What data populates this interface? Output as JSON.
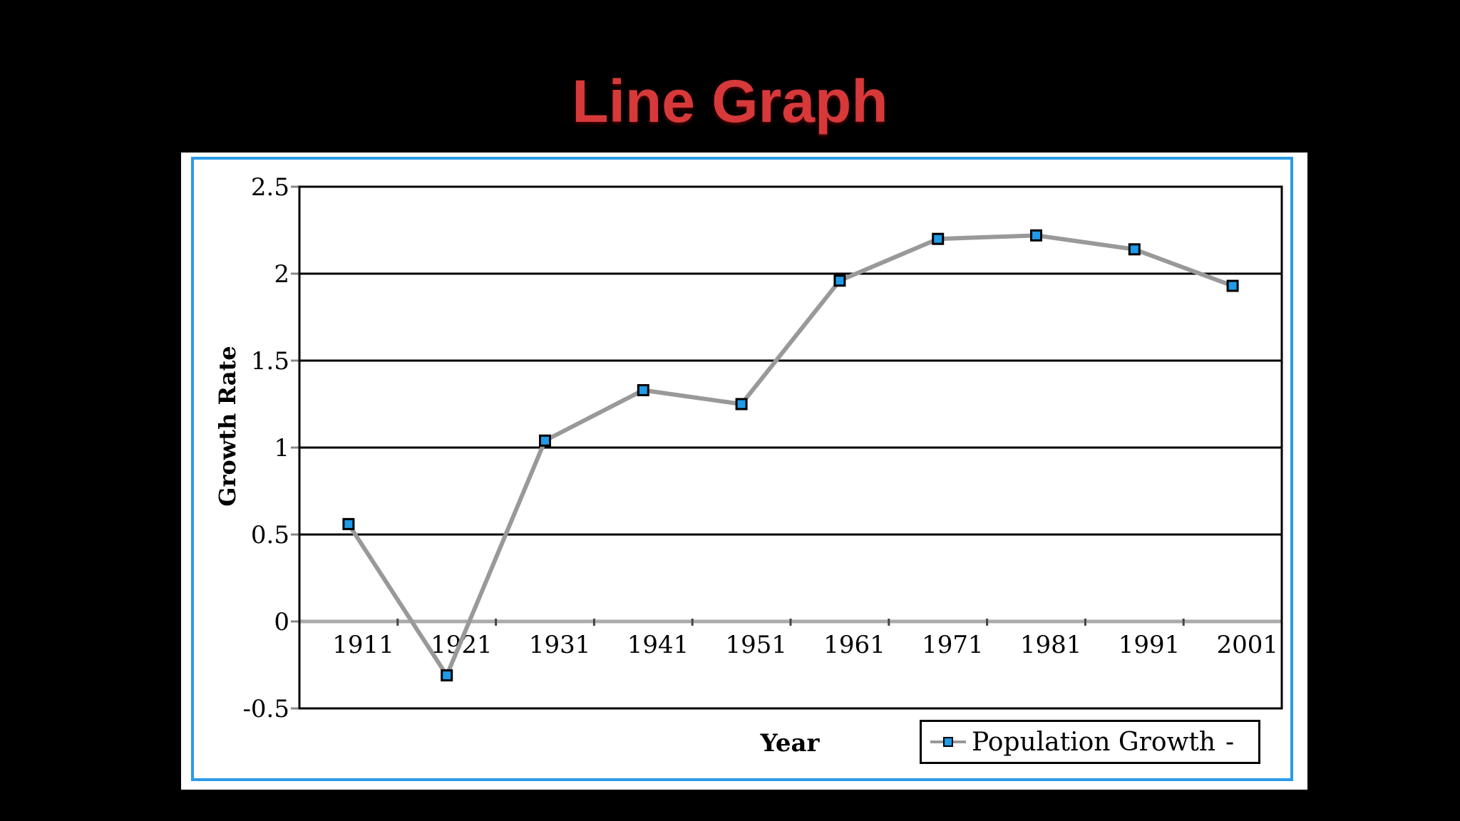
{
  "slide": {
    "title": "Line Graph"
  },
  "colors": {
    "background": "#000000",
    "title": "#d7393a",
    "frame_border": "#2a9be6",
    "series_line": "#999999",
    "marker_fill": "#1f9be8"
  },
  "chart_data": {
    "type": "line",
    "xlabel": "Year",
    "ylabel": "Growth Rate",
    "categories": [
      "1911",
      "1921",
      "1931",
      "1941",
      "1951",
      "1961",
      "1971",
      "1981",
      "1991",
      "2001"
    ],
    "ylim": [
      -0.5,
      2.5
    ],
    "yticks": [
      "2.5",
      "2",
      "1.5",
      "1",
      "0.5",
      "0",
      "-0.5"
    ],
    "grid": true,
    "legend_position": "bottom-right",
    "series": [
      {
        "name": "Population Growth",
        "values": [
          0.56,
          -0.31,
          1.04,
          1.33,
          1.25,
          1.96,
          2.2,
          2.22,
          2.14,
          1.93
        ]
      }
    ]
  }
}
